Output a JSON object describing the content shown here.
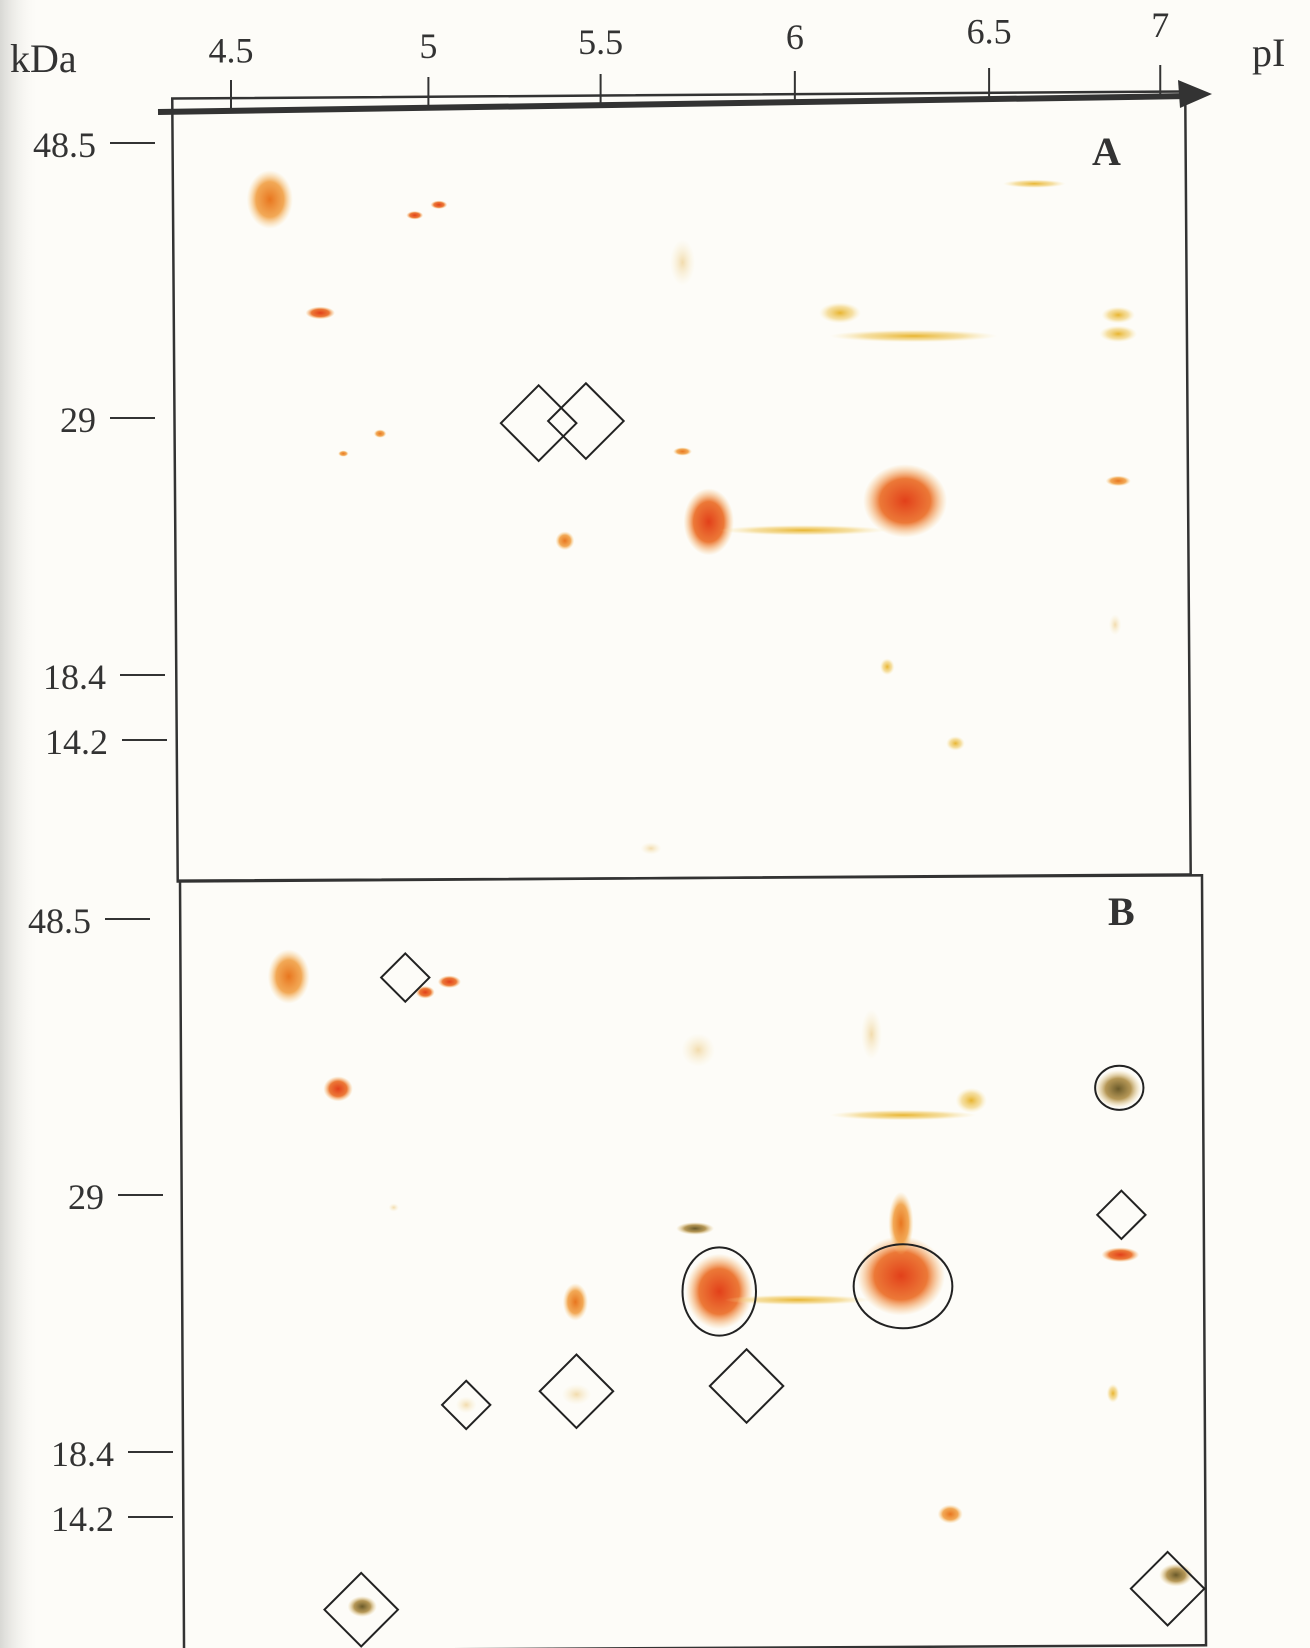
{
  "x_axis": {
    "label": "pI",
    "ticks": [
      "4.5",
      "5",
      "5.5",
      "6",
      "6.5",
      "7"
    ]
  },
  "y_axis_label": "kDa",
  "panels": [
    {
      "label": "A",
      "markers": [
        "48.5",
        "29",
        "18.4",
        "14.2"
      ]
    },
    {
      "label": "B",
      "markers": [
        "48.5",
        "29",
        "18.4",
        "14.2"
      ]
    }
  ]
}
